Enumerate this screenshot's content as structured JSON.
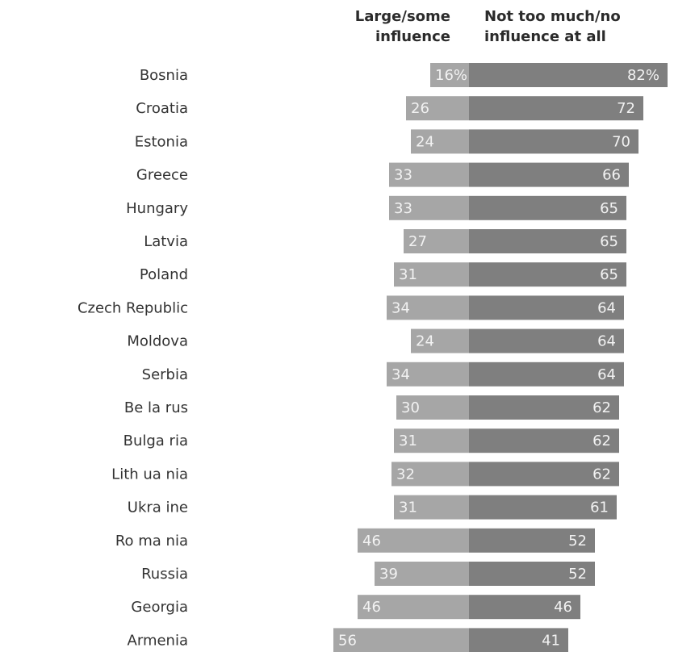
{
  "chart_data": {
    "type": "bar",
    "orientation": "horizontal-diverging",
    "series": [
      {
        "name": "Large/some influence",
        "color": "#a6a6a6",
        "values": [
          16,
          26,
          24,
          33,
          33,
          27,
          31,
          34,
          24,
          34,
          30,
          31,
          32,
          31,
          46,
          39,
          46,
          56
        ],
        "labels": [
          "16%",
          "26",
          "24",
          "33",
          "33",
          "27",
          "31",
          "34",
          "24",
          "34",
          "30",
          "31",
          "32",
          "31",
          "46",
          "39",
          "46",
          "56"
        ]
      },
      {
        "name": "Not too much/no influence at all",
        "color": "#7f7f7f",
        "values": [
          82,
          72,
          70,
          66,
          65,
          65,
          65,
          64,
          64,
          64,
          62,
          62,
          62,
          61,
          52,
          52,
          46,
          41
        ],
        "labels": [
          "82%",
          "72",
          "70",
          "66",
          "65",
          "65",
          "65",
          "64",
          "64",
          "64",
          "62",
          "62",
          "62",
          "61",
          "52",
          "52",
          "46",
          "41"
        ]
      }
    ],
    "categories": [
      "Bosnia",
      "Croatia",
      "Estonia",
      "Greece",
      "Hungary",
      "Latvia",
      "Poland",
      "Czech Republic",
      "Moldova",
      "Serbia",
      "Be la rus",
      "Bulga ria",
      "Lith ua nia",
      "Ukra ine",
      "Ro ma nia",
      "Russia",
      "Georgia",
      "Armenia"
    ],
    "headers": {
      "left": [
        "Large/some",
        "influence"
      ],
      "right": [
        "Not too much/no",
        "influence at all"
      ]
    }
  }
}
